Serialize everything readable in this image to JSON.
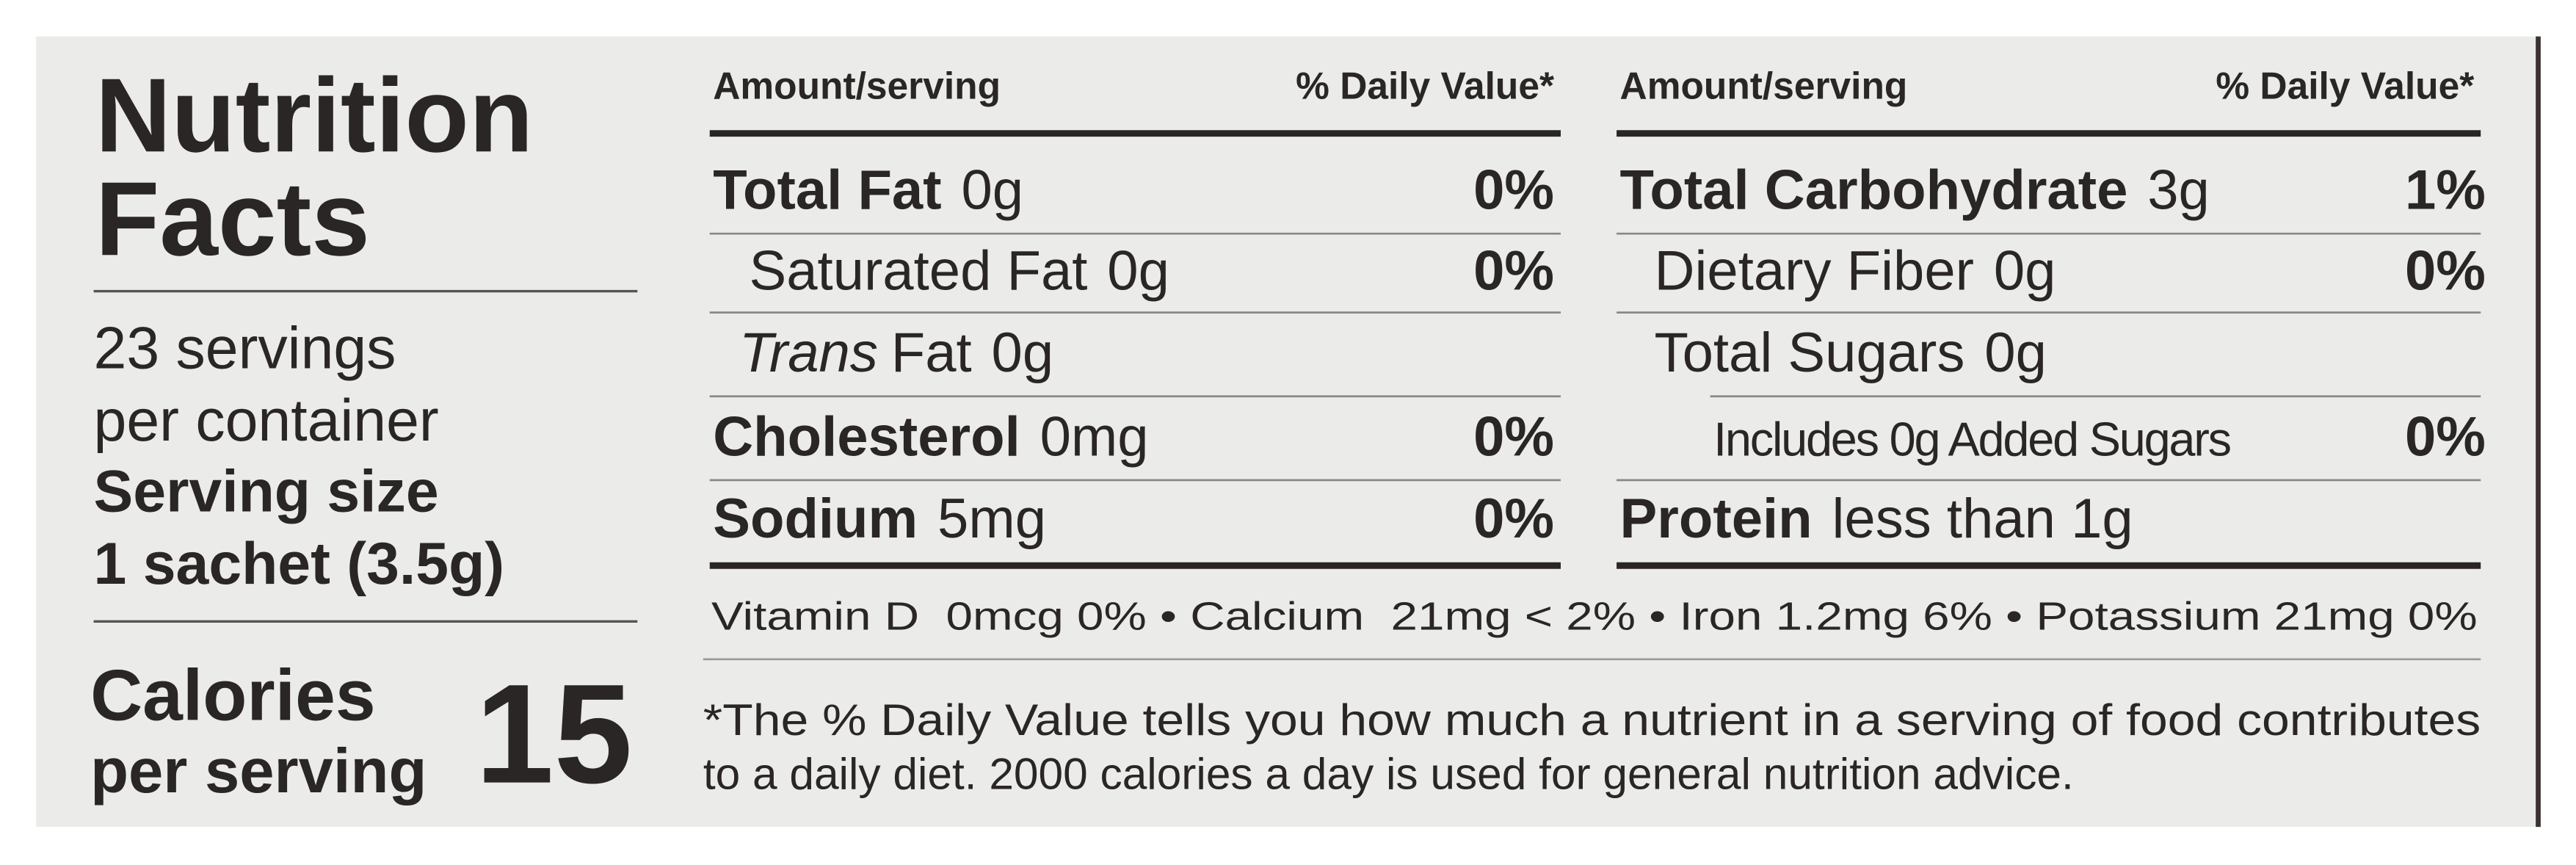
{
  "label": {
    "title_lines": [
      "Nutrition",
      "Facts"
    ],
    "servings_lines": [
      "23 servings",
      "per container"
    ],
    "serving_size_label": "Serving size",
    "serving_size": "1 sachet (3.5g)",
    "calories_lines": [
      "Calories",
      "per serving"
    ],
    "calories": 15
  },
  "columns": [
    {
      "header_amount": "Amount/serving",
      "header_dv": "% Daily Value*",
      "rows": [
        {
          "name": "Total Fat",
          "amount": "0g",
          "dv": "0%",
          "bold": true,
          "indent": 0
        },
        {
          "name": "Saturated Fat",
          "amount": "0g",
          "dv": "0%",
          "bold": false,
          "indent": 1
        },
        {
          "prefix_italic": "Trans",
          "name": "Fat",
          "amount": "0g",
          "bold": false,
          "indent": 1
        },
        {
          "name": "Cholesterol",
          "amount": "0mg",
          "dv": "0%",
          "bold": true,
          "indent": 0
        },
        {
          "name": "Sodium",
          "amount": "5mg",
          "dv": "0%",
          "bold": true,
          "indent": 0
        }
      ]
    },
    {
      "header_amount": "Amount/serving",
      "header_dv": "% Daily Value*",
      "rows": [
        {
          "name": "Total Carbohydrate",
          "amount": "3g",
          "dv": "1%",
          "bold": true,
          "indent": 0
        },
        {
          "name": "Dietary Fiber",
          "amount": "0g",
          "dv": "0%",
          "bold": false,
          "indent": 1
        },
        {
          "name": "Total Sugars",
          "amount": "0g",
          "bold": false,
          "indent": 1
        },
        {
          "name": "Includes 0g Added Sugars",
          "dv": "0%",
          "bold": false,
          "indent": 2
        },
        {
          "name": "Protein",
          "amount": "less than 1g",
          "bold": true,
          "indent": 0
        }
      ]
    }
  ],
  "vitamins": "Vitamin D  0mcg 0% • Calcium  21mg < 2% • Iron 1.2mg 6% • Potassium 21mg 0%",
  "footnote_lines": [
    "*The % Daily Value tells you how much a nutrient in a serving of food contributes",
    "to a daily diet. 2000 calories a day is used for general nutrition advice."
  ]
}
